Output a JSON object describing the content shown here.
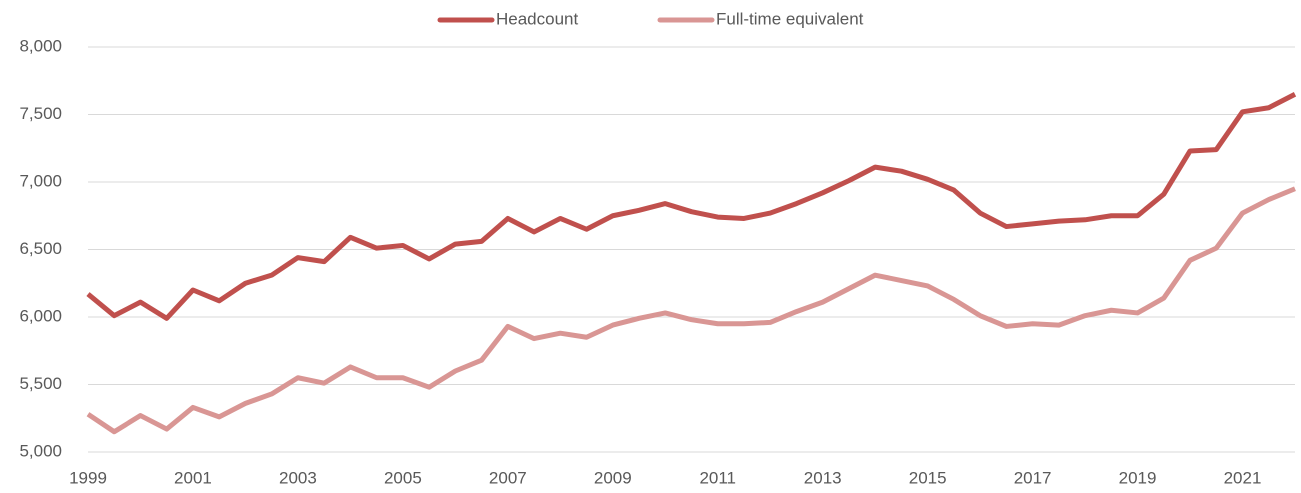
{
  "chart_data": {
    "type": "line",
    "x": [
      1999,
      1999.5,
      2000,
      2000.5,
      2001,
      2001.5,
      2002,
      2002.5,
      2003,
      2003.5,
      2004,
      2004.5,
      2005,
      2005.5,
      2006,
      2006.5,
      2007,
      2007.5,
      2008,
      2008.5,
      2009,
      2009.5,
      2010,
      2010.5,
      2011,
      2011.5,
      2012,
      2012.5,
      2013,
      2013.5,
      2014,
      2014.5,
      2015,
      2015.5,
      2016,
      2016.5,
      2017,
      2017.5,
      2018,
      2018.5,
      2019,
      2019.5,
      2020,
      2020.5,
      2021,
      2021.5,
      2022
    ],
    "series": [
      {
        "name": "Headcount",
        "color": "#c0504d",
        "values": [
          6170,
          6010,
          6110,
          5990,
          6200,
          6120,
          6250,
          6310,
          6440,
          6410,
          6590,
          6510,
          6530,
          6430,
          6540,
          6560,
          6730,
          6630,
          6730,
          6650,
          6750,
          6790,
          6840,
          6780,
          6740,
          6730,
          6770,
          6840,
          6920,
          7010,
          7110,
          7080,
          7020,
          6940,
          6770,
          6670,
          6690,
          6710,
          6720,
          6750,
          6750,
          6910,
          7230,
          7240,
          7520,
          7550,
          7650
        ]
      },
      {
        "name": "Full-time equivalent",
        "color": "#d99694",
        "values": [
          5280,
          5150,
          5270,
          5170,
          5330,
          5260,
          5360,
          5430,
          5550,
          5510,
          5630,
          5550,
          5550,
          5480,
          5600,
          5680,
          5930,
          5840,
          5880,
          5850,
          5940,
          5990,
          6030,
          5980,
          5950,
          5950,
          5960,
          6040,
          6110,
          6210,
          6310,
          6270,
          6230,
          6130,
          6010,
          5930,
          5950,
          5940,
          6010,
          6050,
          6030,
          6140,
          6420,
          6510,
          6770,
          6870,
          6950
        ]
      }
    ],
    "xlim": [
      1999,
      2022
    ],
    "xticks": [
      1999,
      2001,
      2003,
      2005,
      2007,
      2009,
      2011,
      2013,
      2015,
      2017,
      2019,
      2021
    ],
    "ylim": [
      5000,
      8000
    ],
    "yticks": [
      {
        "value": 5000,
        "label": "5,000"
      },
      {
        "value": 5500,
        "label": "5,500"
      },
      {
        "value": 6000,
        "label": "6,000"
      },
      {
        "value": 6500,
        "label": "6,500"
      },
      {
        "value": 7000,
        "label": "7,000"
      },
      {
        "value": 7500,
        "label": "7,500"
      },
      {
        "value": 8000,
        "label": "8,000"
      }
    ],
    "grid": true,
    "legend": "top"
  }
}
